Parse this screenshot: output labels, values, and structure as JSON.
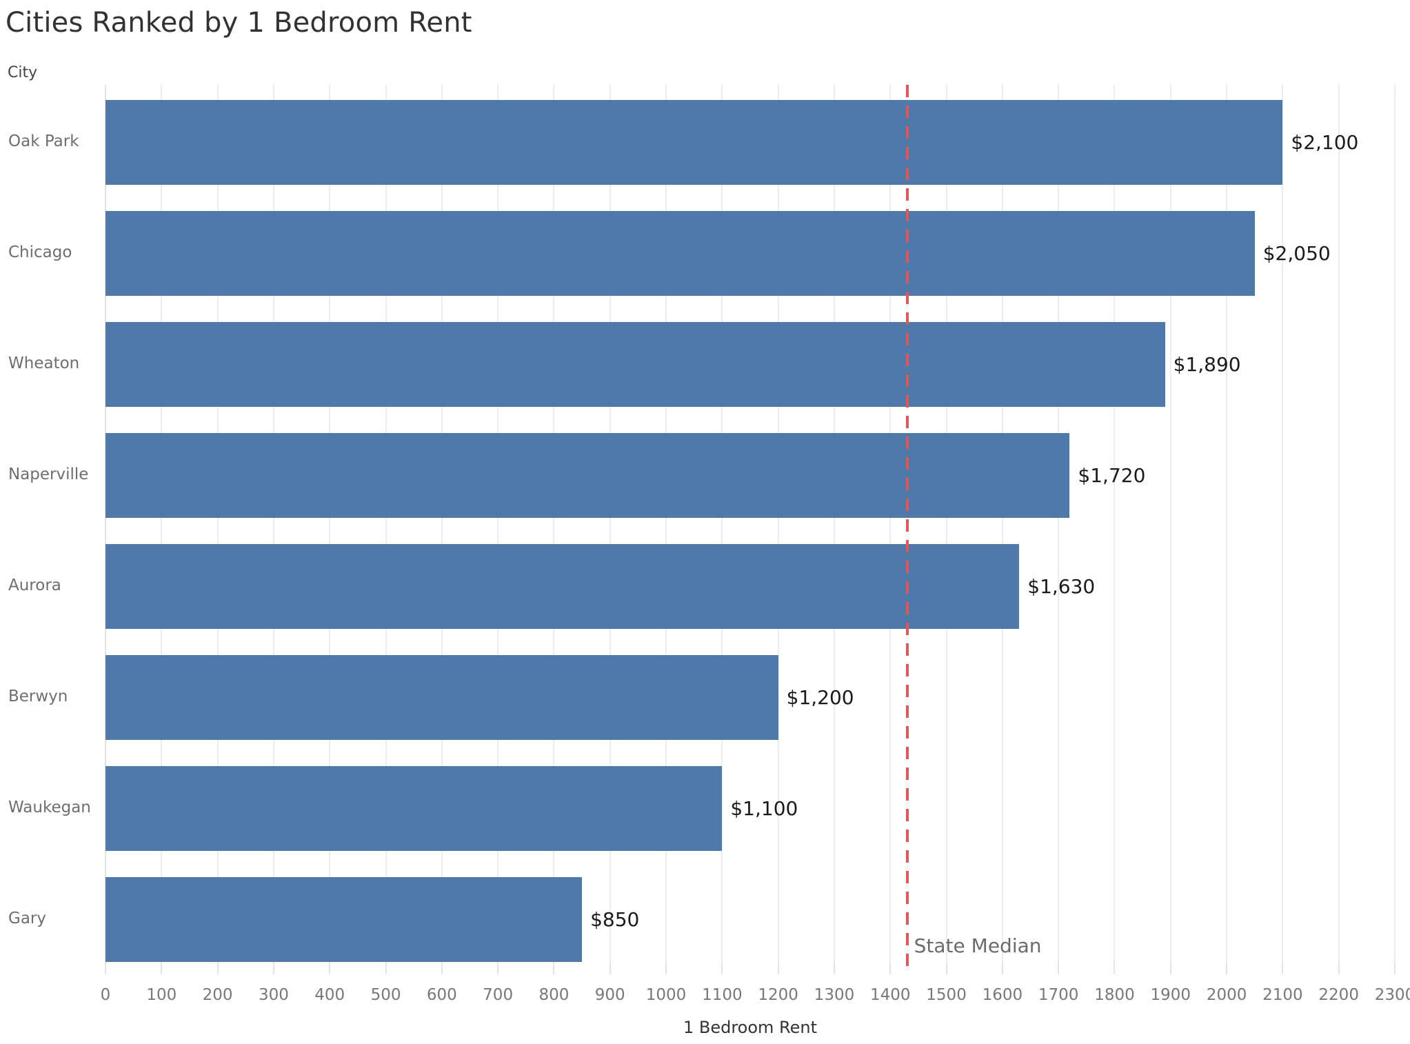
{
  "chart_data": {
    "type": "bar",
    "orientation": "horizontal",
    "title": "Cities Ranked by 1 Bedroom Rent",
    "category_axis_label": "City",
    "value_axis_label": "1 Bedroom Rent",
    "categories": [
      "Oak Park",
      "Chicago",
      "Wheaton",
      "Naperville",
      "Aurora",
      "Berwyn",
      "Waukegan",
      "Gary"
    ],
    "values": [
      2100,
      2050,
      1890,
      1720,
      1630,
      1200,
      1100,
      850
    ],
    "value_labels": [
      "$2,100",
      "$2,050",
      "$1,890",
      "$1,720",
      "$1,630",
      "$1,200",
      "$1,100",
      "$850"
    ],
    "xlim": [
      0,
      2300
    ],
    "x_ticks": [
      0,
      100,
      200,
      300,
      400,
      500,
      600,
      700,
      800,
      900,
      1000,
      1100,
      1200,
      1300,
      1400,
      1500,
      1600,
      1700,
      1800,
      1900,
      2000,
      2100,
      2200,
      2300
    ],
    "grid": true,
    "legend": "none",
    "bar_color": "#4e79a8",
    "reference_line": {
      "value": 1430,
      "label": "State Median",
      "color": "#e15759",
      "style": "dashed"
    }
  }
}
